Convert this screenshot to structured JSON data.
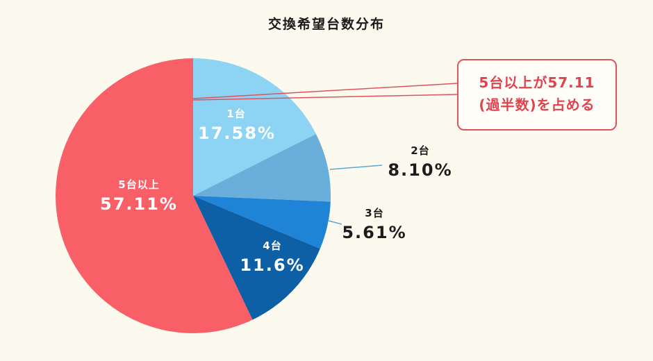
{
  "title": "交換希望台数分布",
  "colors": {
    "background": "#fcf9ee",
    "slice_1": "#8dd3f3",
    "slice_2": "#6aafdb",
    "slice_3": "#1f84d6",
    "slice_4": "#0d5fa6",
    "slice_5": "#f95f67",
    "callout": "#e0525c"
  },
  "labels": {
    "s1": {
      "cat": "1台",
      "pct": "17.58%"
    },
    "s2": {
      "cat": "2台",
      "pct": "8.10%"
    },
    "s3": {
      "cat": "3台",
      "pct": "5.61%"
    },
    "s4": {
      "cat": "4台",
      "pct": "11.6%"
    },
    "s5": {
      "cat": "5台以上",
      "pct": "57.11%"
    }
  },
  "callout": {
    "line1": "5台以上が57.11",
    "line2": "(過半数)を占める"
  },
  "chart_data": {
    "type": "pie",
    "title": "交換希望台数分布",
    "categories": [
      "1台",
      "2台",
      "3台",
      "4台",
      "5台以上"
    ],
    "values": [
      17.58,
      8.1,
      5.61,
      11.6,
      57.11
    ],
    "unit": "%",
    "start_angle": "12 o'clock",
    "direction": "clockwise",
    "colors": [
      "#8dd3f3",
      "#6aafdb",
      "#1f84d6",
      "#0d5fa6",
      "#f95f67"
    ],
    "annotations": [
      "5台以上が57.11 (過半数)を占める"
    ],
    "legend": "none (inline labels)"
  }
}
